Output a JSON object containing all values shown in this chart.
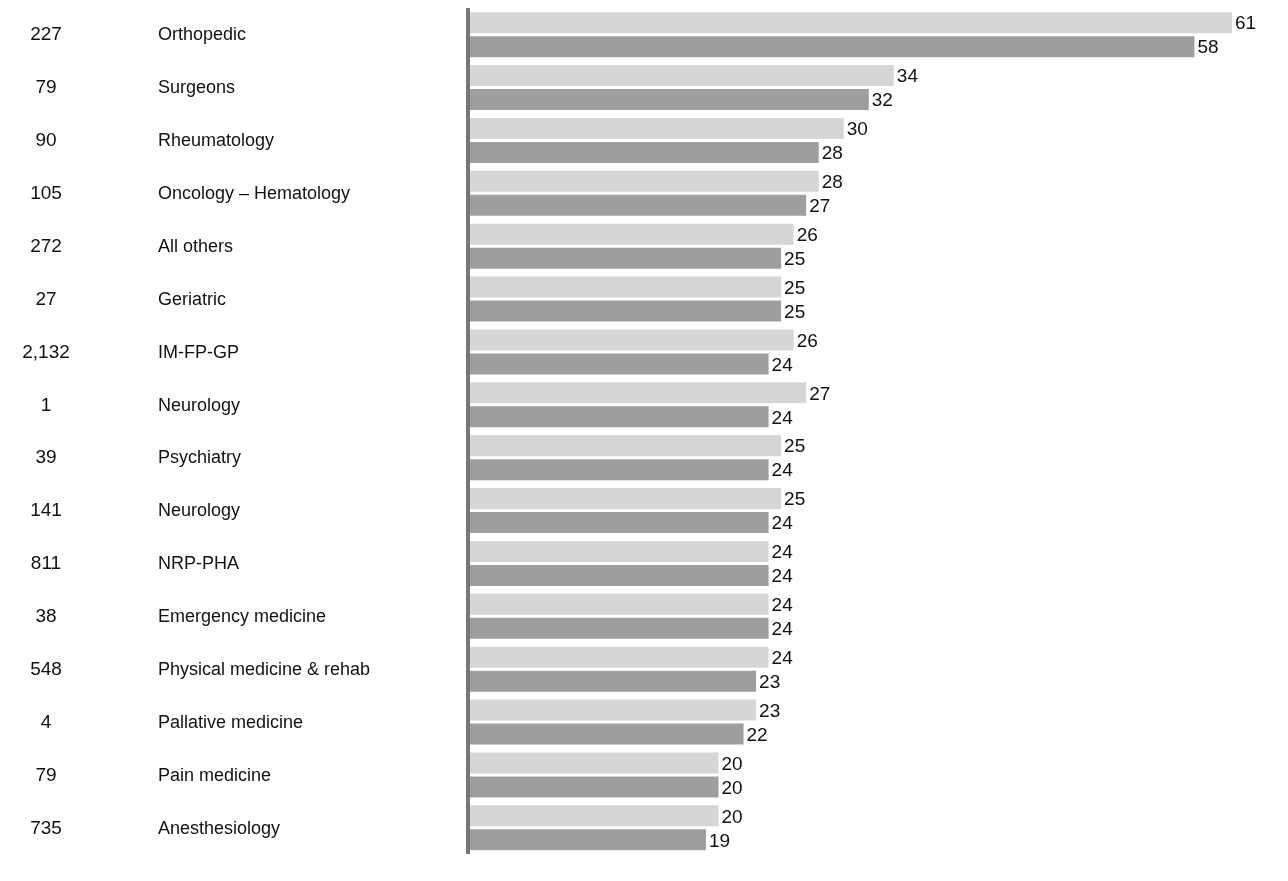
{
  "chart_data": {
    "type": "bar",
    "orientation": "horizontal",
    "data_labels": true,
    "categories": [
      "Orthopedic",
      "Surgeons",
      "Rheumatology",
      "Oncology – Hematology",
      "All others",
      "Geriatric",
      "IM-FP-GP",
      "Neurology",
      "Psychiatry",
      "Neurology",
      "NRP-PHA",
      "Emergency medicine",
      "Physical medicine & rehab",
      "Pallative medicine",
      "Pain medicine",
      "Anesthesiology"
    ],
    "y2_categories": [
      "227",
      "79",
      "90",
      "105",
      "272",
      "27",
      "2,132",
      "1",
      "39",
      "141",
      "811",
      "38",
      "548",
      "4",
      "79",
      "735"
    ],
    "series": [
      {
        "color": "#d6d6d6",
        "values": [
          61,
          34,
          30,
          28,
          26,
          25,
          26,
          27,
          25,
          25,
          24,
          24,
          24,
          23,
          20,
          20
        ]
      },
      {
        "color": "#9e9e9e",
        "values": [
          58,
          32,
          28,
          27,
          25,
          25,
          24,
          24,
          24,
          24,
          24,
          24,
          23,
          22,
          20,
          19
        ]
      }
    ]
  }
}
